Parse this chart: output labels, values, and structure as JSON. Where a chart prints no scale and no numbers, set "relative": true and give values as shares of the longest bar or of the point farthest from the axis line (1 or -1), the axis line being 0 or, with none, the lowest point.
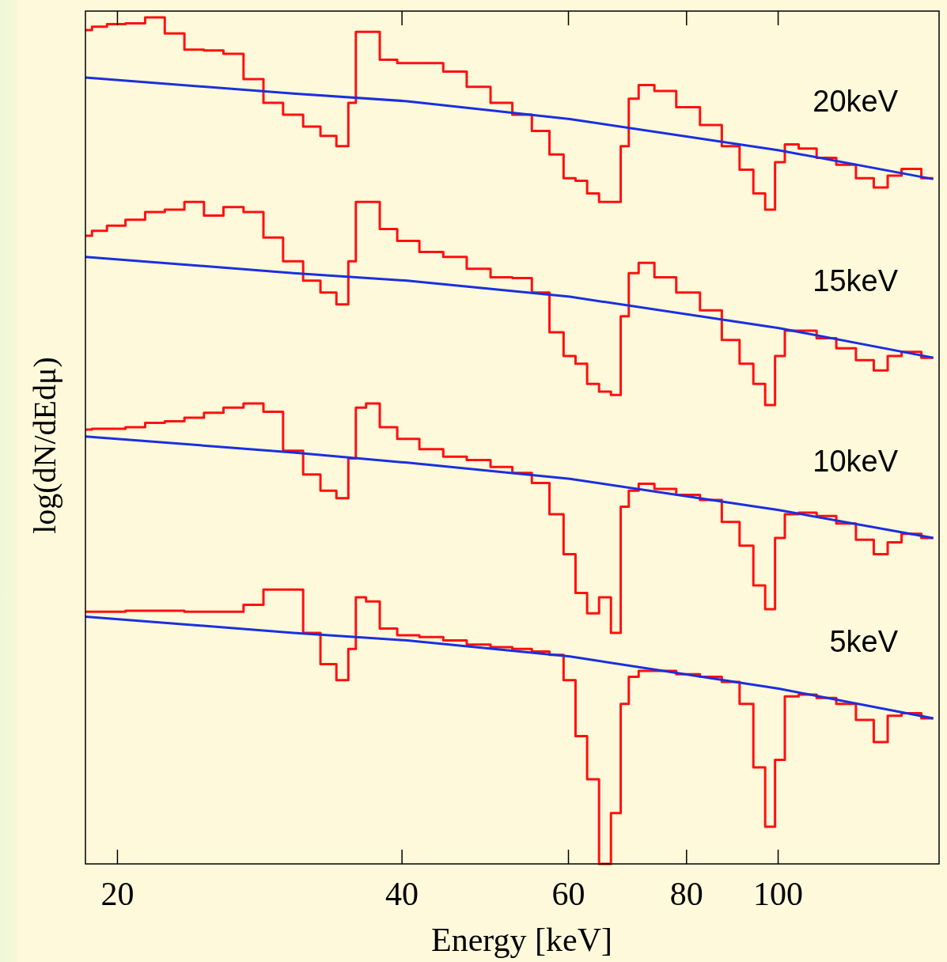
{
  "chart_data": {
    "type": "step",
    "xlabel": "Energy [keV]",
    "ylabel": "log(dN/dEdμ)",
    "relative": true,
    "log": "x",
    "grid": false,
    "legend": false,
    "marker": "none",
    "line_style": "solid",
    "xlim": [
      18.5,
      148
    ],
    "xticks": [
      20,
      40,
      60,
      80,
      100
    ],
    "x": [
      18.5,
      19.1,
      19.9,
      20.9,
      21.9,
      23.0,
      24.1,
      25.3,
      26.5,
      27.9,
      29.2,
      30.7,
      32.2,
      33.4,
      34.8,
      35.4,
      36.1,
      37.2,
      38.6,
      40.5,
      43.0,
      45.5,
      48.2,
      51.1,
      53.6,
      56.2,
      58.4,
      60.2,
      61.9,
      63.7,
      65.6,
      67.5,
      68.8,
      70.2,
      72.2,
      75.8,
      80.3,
      85.1,
      89.3,
      92.8,
      95.5,
      98.3,
      100.2,
      103.1,
      107.2,
      112.5,
      118.0,
      123.8,
      128.7,
      132.5,
      137.7,
      145.9
    ],
    "series": [
      {
        "name": "20keV",
        "color": "#ff1010",
        "values": [
          0.985,
          0.989,
          0.992,
          0.993,
          1.0,
          0.981,
          0.962,
          0.961,
          0.957,
          0.927,
          0.899,
          0.885,
          0.871,
          0.86,
          0.848,
          0.899,
          0.983,
          0.983,
          0.95,
          0.946,
          0.946,
          0.936,
          0.918,
          0.899,
          0.885,
          0.866,
          0.838,
          0.81,
          0.807,
          0.792,
          0.782,
          0.782,
          0.848,
          0.904,
          0.92,
          0.913,
          0.894,
          0.873,
          0.848,
          0.82,
          0.792,
          0.773,
          0.829,
          0.85,
          0.845,
          0.834,
          0.826,
          0.81,
          0.799,
          0.813,
          0.821,
          0.81
        ]
      },
      {
        "type": "line",
        "color": "#1a2fe0",
        "x": [
          18.5,
          30.7,
          40.5,
          60.2,
          100.2,
          145.9
        ],
        "values": [
          0.929,
          0.91,
          0.901,
          0.88,
          0.843,
          0.809
        ]
      },
      {
        "name": "15keV",
        "color": "#ff1010",
        "values": [
          0.742,
          0.748,
          0.754,
          0.761,
          0.77,
          0.773,
          0.782,
          0.766,
          0.776,
          0.77,
          0.74,
          0.712,
          0.689,
          0.675,
          0.661,
          0.712,
          0.782,
          0.782,
          0.75,
          0.736,
          0.723,
          0.717,
          0.703,
          0.693,
          0.692,
          0.675,
          0.628,
          0.6,
          0.591,
          0.567,
          0.558,
          0.554,
          0.647,
          0.698,
          0.71,
          0.693,
          0.675,
          0.654,
          0.619,
          0.591,
          0.567,
          0.542,
          0.6,
          0.63,
          0.63,
          0.621,
          0.609,
          0.595,
          0.583,
          0.6,
          0.605,
          0.598
        ]
      },
      {
        "type": "line",
        "color": "#1a2fe0",
        "x": [
          18.5,
          30.7,
          40.5,
          60.2,
          100.2,
          145.9
        ],
        "values": [
          0.717,
          0.698,
          0.689,
          0.67,
          0.633,
          0.598
        ]
      },
      {
        "name": "10keV",
        "color": "#ff1010",
        "values": [
          0.513,
          0.514,
          0.514,
          0.516,
          0.521,
          0.523,
          0.527,
          0.533,
          0.539,
          0.544,
          0.534,
          0.488,
          0.46,
          0.441,
          0.432,
          0.479,
          0.539,
          0.544,
          0.516,
          0.502,
          0.49,
          0.481,
          0.477,
          0.469,
          0.462,
          0.45,
          0.413,
          0.366,
          0.32,
          0.296,
          0.315,
          0.273,
          0.422,
          0.441,
          0.449,
          0.443,
          0.436,
          0.43,
          0.404,
          0.376,
          0.329,
          0.301,
          0.385,
          0.413,
          0.415,
          0.411,
          0.402,
          0.383,
          0.366,
          0.38,
          0.39,
          0.385
        ]
      },
      {
        "type": "line",
        "color": "#1a2fe0",
        "x": [
          18.5,
          30.7,
          40.5,
          60.2,
          100.2,
          145.9
        ],
        "values": [
          0.505,
          0.486,
          0.474,
          0.455,
          0.418,
          0.385
        ]
      },
      {
        "name": "5keV",
        "color": "#ff1010",
        "values": [
          0.298,
          0.298,
          0.298,
          0.299,
          0.299,
          0.299,
          0.298,
          0.298,
          0.298,
          0.306,
          0.324,
          0.324,
          0.273,
          0.236,
          0.217,
          0.254,
          0.315,
          0.31,
          0.278,
          0.27,
          0.268,
          0.264,
          0.259,
          0.256,
          0.254,
          0.251,
          0.247,
          0.217,
          0.151,
          0.1,
          0.0,
          0.06,
          0.189,
          0.221,
          0.228,
          0.228,
          0.224,
          0.221,
          0.215,
          0.189,
          0.114,
          0.044,
          0.123,
          0.198,
          0.2,
          0.196,
          0.189,
          0.17,
          0.144,
          0.175,
          0.178,
          0.172
        ]
      },
      {
        "type": "line",
        "color": "#1a2fe0",
        "x": [
          18.5,
          30.7,
          40.5,
          60.2,
          100.2,
          145.9
        ],
        "values": [
          0.292,
          0.273,
          0.264,
          0.245,
          0.207,
          0.172
        ]
      }
    ]
  }
}
